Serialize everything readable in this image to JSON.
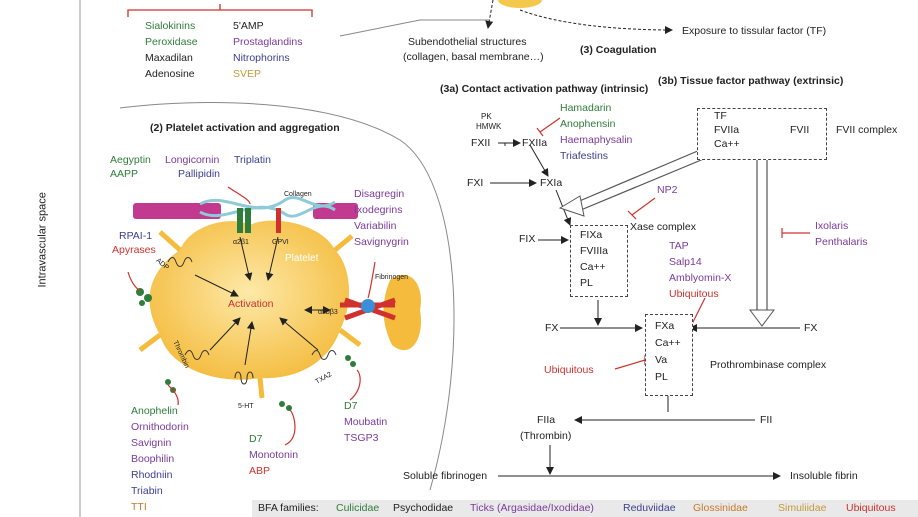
{
  "side_label": "Intravascular space",
  "top_list": {
    "col1": [
      {
        "text": "Sialokinins",
        "color": "green"
      },
      {
        "text": "Peroxidase",
        "color": "green"
      },
      {
        "text": "Maxadilan",
        "color": "black"
      },
      {
        "text": "Adenosine",
        "color": "black"
      }
    ],
    "col2": [
      {
        "text": "5'AMP",
        "color": "black"
      },
      {
        "text": "Prostaglandins",
        "color": "purple"
      },
      {
        "text": "Nitrophorins",
        "color": "navy"
      },
      {
        "text": "SVEP",
        "color": "gold"
      }
    ]
  },
  "coagulation": {
    "subendothelial": "Subendothelial structures",
    "subendothelial_sub": "(collagen, basal membrane…)",
    "exposure": "Exposure to tissular factor (TF)",
    "title": "(3) Coagulation",
    "intrinsic_title": "(3a) Contact activation pathway (intrinsic)",
    "extrinsic_title": "(3b) Tissue factor pathway (extrinsic)"
  },
  "platelet": {
    "title": "(2) Platelet activation and aggregation",
    "top_inhibitors": [
      {
        "text": "Aegyptin",
        "color": "green"
      },
      {
        "text": "Longicornin",
        "color": "purple"
      },
      {
        "text": "Triplatin",
        "color": "navy"
      },
      {
        "text": "AAPP",
        "color": "green"
      },
      {
        "text": "Pallipidin",
        "color": "navy"
      }
    ],
    "collagen": "Collagen",
    "a2b1": "α2β1",
    "gpvi": "GPVI",
    "platelet_label": "Platelet",
    "activation": "Activation",
    "fibrinogen": "Fibrinogen",
    "aIIbb3": "αIIbβ3",
    "adp": "ADP",
    "thrombin": "Thrombin",
    "txa2": "TXA2",
    "ht": "5-HT",
    "rpai": "RPAI-1",
    "apyrases": "Apyrases",
    "disintegrins": [
      {
        "text": "Disagregin",
        "color": "purple"
      },
      {
        "text": "Ixodegrins",
        "color": "purple"
      },
      {
        "text": "Variabilin",
        "color": "purple"
      },
      {
        "text": "Savignygrin",
        "color": "purple"
      }
    ],
    "thrombin_inhibitors": [
      {
        "text": "Anophelin",
        "color": "green"
      },
      {
        "text": "Ornithodorin",
        "color": "purple"
      },
      {
        "text": "Savignin",
        "color": "purple"
      },
      {
        "text": "Boophilin",
        "color": "purple"
      },
      {
        "text": "Rhodniin",
        "color": "navy"
      },
      {
        "text": "Triabin",
        "color": "navy"
      },
      {
        "text": "TTI",
        "color": "orange"
      }
    ],
    "serotonin_binders": [
      {
        "text": "D7",
        "color": "green"
      },
      {
        "text": "Monotonin",
        "color": "purple"
      },
      {
        "text": "ABP",
        "color": "red"
      }
    ],
    "txa2_binders": [
      {
        "text": "D7",
        "color": "green"
      },
      {
        "text": "Moubatin",
        "color": "purple"
      },
      {
        "text": "TSGP3",
        "color": "purple"
      }
    ]
  },
  "intrinsic": {
    "pk": "PK",
    "hmwk": "HMWK",
    "fxii": "FXII",
    "fxiia": "FXIIa",
    "fxi": "FXI",
    "fxia": "FXIa",
    "fix": "FIX",
    "inhibitors": [
      {
        "text": "Hamadarin",
        "color": "green"
      },
      {
        "text": "Anophensin",
        "color": "green"
      },
      {
        "text": "Haemaphysalin",
        "color": "purple"
      },
      {
        "text": "Triafestins",
        "color": "navy"
      }
    ]
  },
  "fvii_complex": {
    "items": [
      "TF",
      "FVIIa",
      "Ca++"
    ],
    "fvii": "FVII",
    "label": "FVII complex"
  },
  "xase": {
    "items": [
      "FIXa",
      "FVIIIa",
      "Ca++",
      "PL"
    ],
    "label": "Xase complex",
    "np2": "NP2",
    "inhibitors": [
      {
        "text": "TAP",
        "color": "purple"
      },
      {
        "text": "Salp14",
        "color": "purple"
      },
      {
        "text": "Amblyomin-X",
        "color": "purple"
      },
      {
        "text": "Ubiquitous",
        "color": "red"
      }
    ]
  },
  "extrinsic_inhibitors": [
    {
      "text": "Ixolaris",
      "color": "purple"
    },
    {
      "text": "Penthalaris",
      "color": "purple"
    }
  ],
  "prothrombinase": {
    "items": [
      "FXa",
      "Ca++",
      "Va",
      "PL"
    ],
    "label": "Prothrombinase complex",
    "fx_left": "FX",
    "fx_right": "FX",
    "ubiquitous": "Ubiquitous"
  },
  "thrombin": {
    "fiia": "FIIa",
    "thrombin": "(Thrombin)",
    "fii": "FII",
    "soluble": "Soluble fibrinogen",
    "insoluble": "Insoluble fibrin"
  },
  "legend": {
    "label": "BFA families:",
    "families": [
      {
        "text": "Culicidae",
        "color": "green"
      },
      {
        "text": "Psychodidae",
        "color": "black"
      },
      {
        "text": "Ticks (Argasidae/Ixodidae)",
        "color": "purple"
      },
      {
        "text": "Reduviidae",
        "color": "navy"
      },
      {
        "text": "Glossinidae",
        "color": "orange"
      },
      {
        "text": "Simuliidae",
        "color": "gold"
      },
      {
        "text": "Ubiquitous",
        "color": "red"
      }
    ]
  }
}
